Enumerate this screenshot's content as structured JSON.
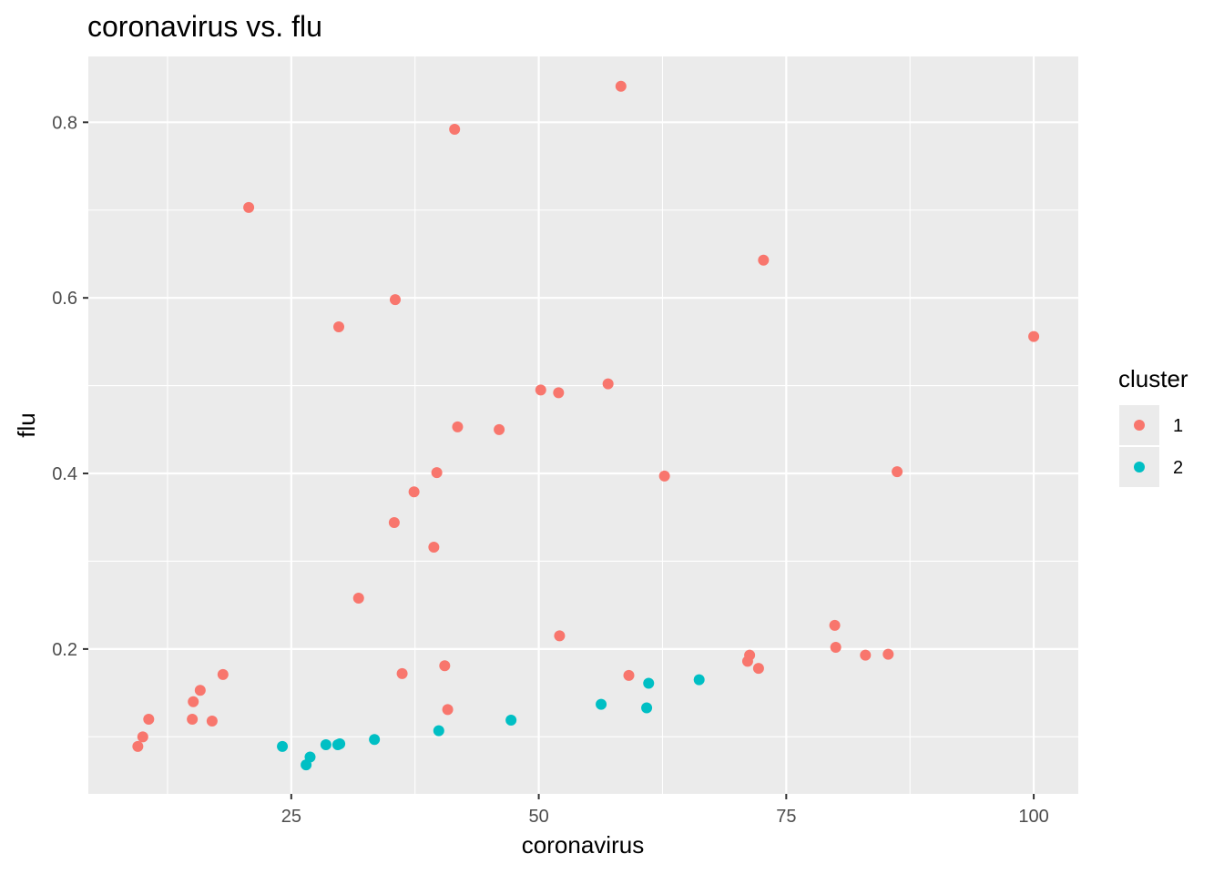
{
  "chart_data": {
    "type": "scatter",
    "title": "coronavirus vs. flu",
    "xlabel": "coronavirus",
    "ylabel": "flu",
    "xlim": [
      4.5,
      104.5
    ],
    "ylim": [
      0.035,
      0.875
    ],
    "x_ticks": [
      25,
      50,
      75,
      100
    ],
    "x_tick_labels": [
      "25",
      "50",
      "75",
      "100"
    ],
    "y_ticks": [
      0.2,
      0.4,
      0.6,
      0.8
    ],
    "y_tick_labels": [
      "0.2",
      "0.4",
      "0.6",
      "0.8"
    ],
    "grid": true,
    "legend": {
      "title": "cluster",
      "position": "right",
      "entries": [
        {
          "label": "1",
          "color": "#F8766D"
        },
        {
          "label": "2",
          "color": "#00BFC4"
        }
      ]
    },
    "series": [
      {
        "name": "1",
        "color": "#F8766D",
        "points": [
          [
            9.5,
            0.089
          ],
          [
            10.0,
            0.1
          ],
          [
            10.6,
            0.12
          ],
          [
            15.0,
            0.12
          ],
          [
            15.1,
            0.14
          ],
          [
            15.8,
            0.153
          ],
          [
            17.0,
            0.118
          ],
          [
            18.1,
            0.171
          ],
          [
            20.7,
            0.703
          ],
          [
            29.8,
            0.567
          ],
          [
            31.8,
            0.258
          ],
          [
            35.4,
            0.344
          ],
          [
            35.5,
            0.598
          ],
          [
            36.2,
            0.172
          ],
          [
            37.4,
            0.379
          ],
          [
            39.4,
            0.316
          ],
          [
            39.7,
            0.401
          ],
          [
            40.5,
            0.181
          ],
          [
            40.8,
            0.131
          ],
          [
            41.5,
            0.792
          ],
          [
            41.8,
            0.453
          ],
          [
            46.0,
            0.45
          ],
          [
            50.2,
            0.495
          ],
          [
            52.0,
            0.492
          ],
          [
            52.1,
            0.215
          ],
          [
            57.0,
            0.502
          ],
          [
            58.3,
            0.841
          ],
          [
            59.1,
            0.17
          ],
          [
            62.7,
            0.397
          ],
          [
            71.1,
            0.186
          ],
          [
            71.3,
            0.193
          ],
          [
            72.2,
            0.178
          ],
          [
            72.7,
            0.643
          ],
          [
            79.9,
            0.227
          ],
          [
            80.0,
            0.202
          ],
          [
            83.0,
            0.193
          ],
          [
            85.3,
            0.194
          ],
          [
            86.2,
            0.402
          ],
          [
            100.0,
            0.556
          ]
        ]
      },
      {
        "name": "2",
        "color": "#00BFC4",
        "points": [
          [
            24.1,
            0.089
          ],
          [
            26.5,
            0.068
          ],
          [
            26.9,
            0.077
          ],
          [
            28.5,
            0.091
          ],
          [
            29.7,
            0.091
          ],
          [
            29.9,
            0.092
          ],
          [
            33.4,
            0.097
          ],
          [
            39.9,
            0.107
          ],
          [
            47.2,
            0.119
          ],
          [
            56.3,
            0.137
          ],
          [
            60.9,
            0.133
          ],
          [
            61.1,
            0.161
          ],
          [
            66.2,
            0.165
          ]
        ]
      }
    ]
  }
}
